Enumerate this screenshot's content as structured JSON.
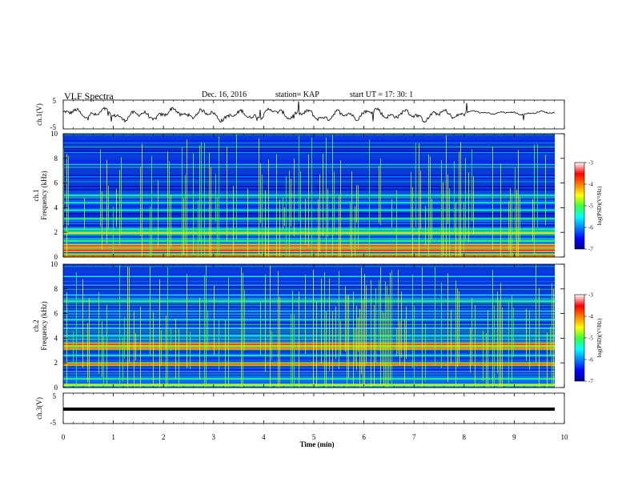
{
  "header": {
    "title": "VLF Spectra",
    "date": "Dec. 16, 2016",
    "station": "station= KAP",
    "start": "start  UT  =    17: 30: 1"
  },
  "chart_data": [
    {
      "type": "line",
      "panel": "ch1-voltage",
      "ylabel": "ch.1(V)",
      "ylim": [
        -5,
        5
      ],
      "xlim": [
        0,
        10
      ],
      "yticks": [
        "5",
        "-5"
      ],
      "series_description": "noisy waveform centered near 0 V, amplitude ~1 V with spikes",
      "color": "#000000"
    },
    {
      "type": "heatmap",
      "panel": "ch1-spectrogram",
      "ylabel_line1": "ch.1",
      "ylabel_line2": "Frequency (kHz)",
      "ylim": [
        0,
        10
      ],
      "xlim": [
        0,
        9.8
      ],
      "yticks": [
        "0",
        "2",
        "4",
        "6",
        "8",
        "10"
      ],
      "colorbar": {
        "label": "log(PSD)(V²/Hz)",
        "range": [
          -7,
          -3
        ],
        "ticks": [
          "-3",
          "-4",
          "-5",
          "-6",
          "-7"
        ]
      },
      "bands_khz": [
        {
          "f": 0.1,
          "level": -3.8
        },
        {
          "f": 0.55,
          "level": -3.6
        },
        {
          "f": 0.9,
          "level": -3.7
        },
        {
          "f": 1.3,
          "level": -5.0
        },
        {
          "f": 1.95,
          "level": -4.4
        },
        {
          "f": 2.25,
          "level": -5.0
        },
        {
          "f": 2.7,
          "level": -6.0
        },
        {
          "f": 3.1,
          "level": -5.2
        },
        {
          "f": 3.4,
          "level": -6.3
        },
        {
          "f": 3.8,
          "level": -5.3
        },
        {
          "f": 4.4,
          "level": -5.3
        },
        {
          "f": 5.0,
          "level": -5.2
        },
        {
          "f": 5.6,
          "level": -6.2
        },
        {
          "f": 6.5,
          "level": -6.0
        },
        {
          "f": 7.5,
          "level": -5.7
        },
        {
          "f": 8.7,
          "level": -6.3
        }
      ]
    },
    {
      "type": "heatmap",
      "panel": "ch2-spectrogram",
      "ylabel_line1": "ch.2",
      "ylabel_line2": "Frequency (kHz)",
      "ylim": [
        0,
        10
      ],
      "xlim": [
        0,
        9.8
      ],
      "yticks": [
        "0",
        "2",
        "4",
        "6",
        "8",
        "10"
      ],
      "colorbar": {
        "label": "log(PSD)(V²/Hz)",
        "range": [
          -7,
          -3
        ],
        "ticks": [
          "-3",
          "-4",
          "-5",
          "-6",
          "-7"
        ]
      },
      "bands_khz": [
        {
          "f": 0.2,
          "level": -4.5
        },
        {
          "f": 0.7,
          "level": -5.2
        },
        {
          "f": 1.3,
          "level": -5.8
        },
        {
          "f": 1.9,
          "level": -3.9
        },
        {
          "f": 2.6,
          "level": -5.3
        },
        {
          "f": 3.2,
          "level": -4.0
        },
        {
          "f": 3.5,
          "level": -3.7
        },
        {
          "f": 4.2,
          "level": -5.2
        },
        {
          "f": 4.8,
          "level": -5.5
        },
        {
          "f": 5.5,
          "level": -5.3
        },
        {
          "f": 6.2,
          "level": -5.6
        },
        {
          "f": 7.0,
          "level": -5.0
        },
        {
          "f": 7.5,
          "level": -5.6
        },
        {
          "f": 8.3,
          "level": -5.8
        },
        {
          "f": 9.0,
          "level": -5.6
        }
      ]
    },
    {
      "type": "line",
      "panel": "ch3-voltage",
      "ylabel": "ch.3(V)",
      "ylim": [
        -5,
        5
      ],
      "xlim": [
        0,
        10
      ],
      "yticks": [
        "5",
        "-5"
      ],
      "series_description": "flat line at about 0 V",
      "constant_value": 0
    }
  ],
  "xaxis": {
    "label": "Time  (min)",
    "range": [
      0,
      10
    ],
    "ticks": [
      "0",
      "1",
      "2",
      "3",
      "4",
      "5",
      "6",
      "7",
      "8",
      "9",
      "10"
    ]
  },
  "colors": {
    "spectrogram_background": "#0a3ad8",
    "burst_line": "#7aff3c",
    "band_hot": "#ff3a1a",
    "band_warm": "#f0ff20",
    "band_mid": "#3cd6ff"
  }
}
